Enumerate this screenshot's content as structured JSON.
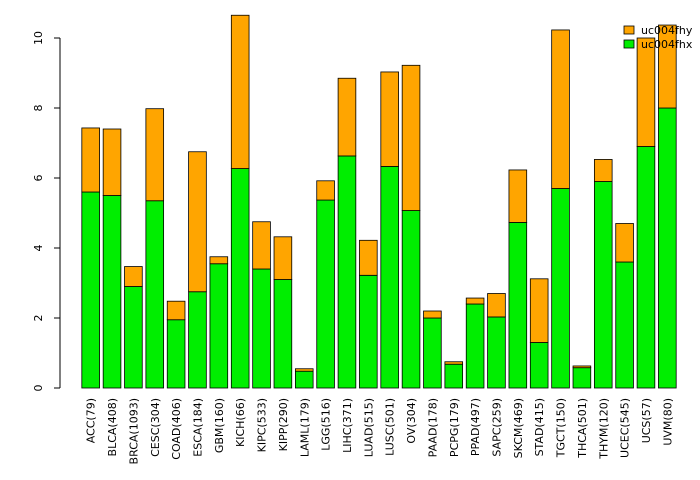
{
  "chart_data": {
    "type": "bar",
    "stacked": true,
    "title": "",
    "xlabel": "",
    "ylabel": "",
    "ylim": [
      0,
      10.8
    ],
    "yticks": [
      0,
      2,
      4,
      6,
      8,
      10
    ],
    "grid": false,
    "legend_position": "top-right",
    "categories": [
      "ACC(79)",
      "BLCA(408)",
      "BRCA(1093)",
      "CESC(304)",
      "COAD(406)",
      "ESCA(184)",
      "GBM(160)",
      "KICH(66)",
      "KIPC(533)",
      "KIPP(290)",
      "LAML(179)",
      "LGG(516)",
      "LIHC(371)",
      "LUAD(515)",
      "LUSC(501)",
      "OV(304)",
      "PAAD(178)",
      "PCPG(179)",
      "PPAD(497)",
      "SAPC(259)",
      "SKCM(469)",
      "STAD(415)",
      "TGCT(150)",
      "THCA(501)",
      "THYM(120)",
      "UCEC(545)",
      "UCS(57)",
      "UVM(80)"
    ],
    "series": [
      {
        "name": "uc004fhx",
        "color": "#00ee00",
        "values": [
          5.6,
          5.5,
          2.9,
          5.35,
          1.95,
          2.75,
          3.55,
          6.27,
          3.4,
          3.1,
          0.48,
          5.37,
          6.63,
          3.22,
          6.33,
          5.07,
          2.0,
          0.68,
          2.4,
          2.03,
          4.73,
          1.3,
          5.7,
          0.58,
          5.9,
          3.6,
          6.9,
          8.0
        ]
      },
      {
        "name": "uc004fhy",
        "color": "#ffa500",
        "values": [
          1.83,
          1.9,
          0.57,
          2.63,
          0.53,
          4.0,
          0.2,
          4.38,
          1.35,
          1.22,
          0.07,
          0.55,
          2.22,
          1.0,
          2.7,
          4.15,
          0.2,
          0.07,
          0.17,
          0.67,
          1.5,
          1.82,
          4.53,
          0.05,
          0.63,
          1.1,
          3.1,
          2.37
        ]
      }
    ]
  }
}
